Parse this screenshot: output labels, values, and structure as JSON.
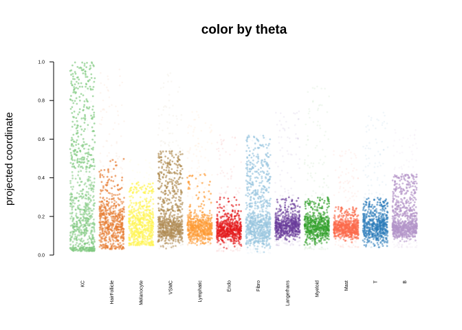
{
  "chart_data": {
    "type": "scatter",
    "title": "color by theta",
    "xlabel": "",
    "ylabel": "projected coordinate",
    "ylim": [
      0,
      1
    ],
    "yticks": [
      "0.0",
      "0.2",
      "0.4",
      "0.6",
      "0.8",
      "1.0"
    ],
    "grid": false,
    "legend": "none",
    "categories": [
      "KC",
      "HairFollicle",
      "Melanocyte",
      "VSMC",
      "Lymphatic",
      "Endo",
      "Fibro",
      "Langerhans",
      "Myeloid",
      "Mast",
      "T",
      "B"
    ],
    "series": [
      {
        "category": "KC",
        "color": "#7fc97f",
        "median": 0.15,
        "dense_max": 0.45,
        "max": 1.0,
        "outlier_min": 0.45,
        "outlier_max": 1.0,
        "min": 0.02
      },
      {
        "category": "HairFollicle",
        "color": "#e6782c",
        "median": 0.16,
        "dense_max": 0.33,
        "max": 0.97,
        "outlier_min": 0.33,
        "outlier_max": 0.5,
        "min": 0.03
      },
      {
        "category": "Melanocyte",
        "color": "#fff44f",
        "median": 0.15,
        "dense_max": 0.32,
        "max": 0.5,
        "outlier_min": 0.32,
        "outlier_max": 0.38,
        "min": 0.05
      },
      {
        "category": "VSMC",
        "color": "#b08d55",
        "median": 0.14,
        "dense_max": 0.23,
        "max": 0.97,
        "outlier_min": 0.23,
        "outlier_max": 0.54,
        "min": 0.03
      },
      {
        "category": "Lymphatic",
        "color": "#fd9b35",
        "median": 0.14,
        "dense_max": 0.22,
        "max": 0.75,
        "outlier_min": 0.22,
        "outlier_max": 0.42,
        "min": 0.05
      },
      {
        "category": "Endo",
        "color": "#e41a1c",
        "median": 0.13,
        "dense_max": 0.2,
        "max": 0.63,
        "outlier_min": 0.2,
        "outlier_max": 0.3,
        "min": 0.02
      },
      {
        "category": "Fibro",
        "color": "#98c4df",
        "median": 0.14,
        "dense_max": 0.25,
        "max": 0.63,
        "outlier_min": 0.25,
        "outlier_max": 0.62,
        "min": 0.01
      },
      {
        "category": "Langerhans",
        "color": "#6a3d9a",
        "median": 0.15,
        "dense_max": 0.22,
        "max": 0.75,
        "outlier_min": 0.22,
        "outlier_max": 0.3,
        "min": 0.05
      },
      {
        "category": "Myeloid",
        "color": "#33a02c",
        "median": 0.15,
        "dense_max": 0.24,
        "max": 0.88,
        "outlier_min": 0.24,
        "outlier_max": 0.3,
        "min": 0.03
      },
      {
        "category": "Mast",
        "color": "#fb6a4a",
        "median": 0.14,
        "dense_max": 0.2,
        "max": 0.55,
        "outlier_min": 0.2,
        "outlier_max": 0.25,
        "min": 0.04
      },
      {
        "category": "T",
        "color": "#2b7bba",
        "median": 0.15,
        "dense_max": 0.25,
        "max": 0.75,
        "outlier_min": 0.25,
        "outlier_max": 0.3,
        "min": 0.04
      },
      {
        "category": "B",
        "color": "#b394c8",
        "median": 0.14,
        "dense_max": 0.2,
        "max": 0.65,
        "outlier_min": 0.2,
        "outlier_max": 0.42,
        "min": 0.04
      }
    ]
  }
}
